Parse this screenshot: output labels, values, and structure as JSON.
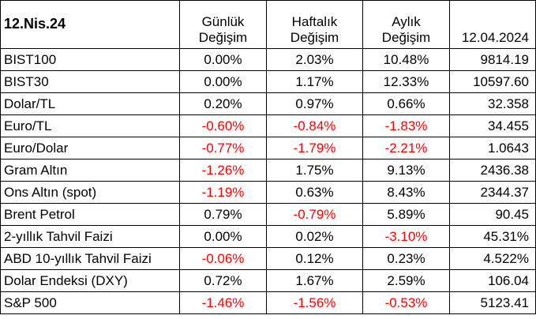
{
  "header": {
    "date_label": "12.Nis.24",
    "columns": [
      {
        "line1": "Günlük",
        "line2": "Değişim"
      },
      {
        "line1": "Haftalık",
        "line2": "Değişim"
      },
      {
        "line1": "Aylık",
        "line2": "Değişim"
      },
      {
        "line1": "",
        "line2": "12.04.2024"
      }
    ]
  },
  "rows": [
    {
      "name": "BIST100",
      "daily": "0.00%",
      "weekly": "2.03%",
      "monthly": "10.48%",
      "value": "9814.19"
    },
    {
      "name": "BIST30",
      "daily": "0.00%",
      "weekly": "1.17%",
      "monthly": "12.33%",
      "value": "10597.60"
    },
    {
      "name": "Dolar/TL",
      "daily": "0.20%",
      "weekly": "0.97%",
      "monthly": "0.66%",
      "value": "32.358"
    },
    {
      "name": "Euro/TL",
      "daily": "-0.60%",
      "weekly": "-0.84%",
      "monthly": "-1.83%",
      "value": "34.455"
    },
    {
      "name": "Euro/Dolar",
      "daily": "-0.77%",
      "weekly": "-1.79%",
      "monthly": "-2.21%",
      "value": "1.0643"
    },
    {
      "name": "Gram Altın",
      "daily": "-1.26%",
      "weekly": "1.75%",
      "monthly": "9.13%",
      "value": "2436.38"
    },
    {
      "name": "Ons Altın (spot)",
      "daily": "-1.19%",
      "weekly": "0.63%",
      "monthly": "8.43%",
      "value": "2344.37"
    },
    {
      "name": "Brent Petrol",
      "daily": "0.79%",
      "weekly": "-0.79%",
      "monthly": "5.89%",
      "value": "90.45"
    },
    {
      "name": "2-yıllık Tahvil Faizi",
      "daily": "0.00%",
      "weekly": "0.02%",
      "monthly": "-3.10%",
      "value": "45.31%"
    },
    {
      "name": "ABD 10-yıllık Tahvil Faizi",
      "daily": "-0.06%",
      "weekly": "0.12%",
      "monthly": "0.23%",
      "value": "4.522%"
    },
    {
      "name": "Dolar Endeksi (DXY)",
      "daily": "0.72%",
      "weekly": "1.67%",
      "monthly": "2.59%",
      "value": "106.04"
    },
    {
      "name": "S&P 500",
      "daily": "-1.46%",
      "weekly": "-1.56%",
      "monthly": "-0.53%",
      "value": "5123.41"
    }
  ],
  "colors": {
    "negative": "#ff0000",
    "positive": "#000000",
    "border": "#000000"
  }
}
